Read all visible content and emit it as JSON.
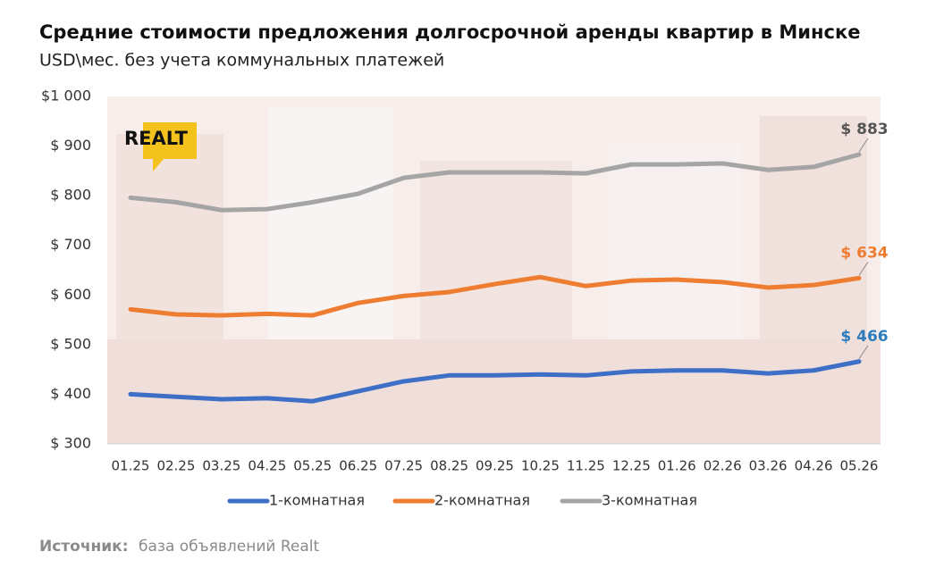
{
  "chart_data": {
    "type": "line",
    "title": "Средние стоимости предложения долгосрочной аренды квартир в Минске",
    "subtitle": "USD\\мес. без учета коммунальных платежей",
    "logo": "REALT",
    "source_label": "Источник:",
    "source": "база объявлений Realt",
    "categories": [
      "01.25",
      "02.25",
      "03.25",
      "04.25",
      "05.25",
      "06.25",
      "07.25",
      "08.25",
      "09.25",
      "10.25",
      "11.25",
      "12.25",
      "01.26",
      "02.26",
      "03.26",
      "04.26",
      "05.26"
    ],
    "ylim": [
      300,
      1000
    ],
    "yticks": [
      {
        "value": 300,
        "label": "$ 300"
      },
      {
        "value": 400,
        "label": "$ 400"
      },
      {
        "value": 500,
        "label": "$ 500"
      },
      {
        "value": 600,
        "label": "$ 600"
      },
      {
        "value": 700,
        "label": "$ 700"
      },
      {
        "value": 800,
        "label": "$ 800"
      },
      {
        "value": 900,
        "label": "$ 900"
      },
      {
        "value": 1000,
        "label": "$1 000"
      }
    ],
    "legend": "bottom",
    "series": [
      {
        "name": "1-комнатная",
        "color": "#3d6fc6",
        "label_color": "#2b7bbd",
        "values": [
          400,
          395,
          390,
          392,
          386,
          406,
          426,
          438,
          438,
          440,
          438,
          446,
          448,
          448,
          442,
          448,
          466
        ],
        "value_labels": [
          null,
          null,
          null,
          null,
          null,
          null,
          null,
          null,
          null,
          null,
          null,
          null,
          null,
          null,
          null,
          null,
          "$ 466"
        ]
      },
      {
        "name": "2-комнатная",
        "color": "#ef7d31",
        "label_color": "#ef7d31",
        "values": [
          571,
          561,
          559,
          562,
          559,
          584,
          598,
          606,
          622,
          636,
          618,
          629,
          631,
          626,
          615,
          620,
          634
        ],
        "value_labels": [
          null,
          null,
          null,
          null,
          null,
          null,
          null,
          null,
          null,
          null,
          null,
          null,
          null,
          null,
          null,
          null,
          "$ 634"
        ]
      },
      {
        "name": "3-комнатная",
        "color": "#a5a5a5",
        "label_color": "#555555",
        "values": [
          796,
          787,
          771,
          773,
          787,
          804,
          836,
          847,
          847,
          847,
          845,
          863,
          863,
          865,
          852,
          858,
          883
        ],
        "value_labels": [
          null,
          null,
          null,
          null,
          null,
          null,
          null,
          null,
          null,
          null,
          null,
          null,
          null,
          null,
          null,
          null,
          "$ 883"
        ]
      }
    ]
  }
}
